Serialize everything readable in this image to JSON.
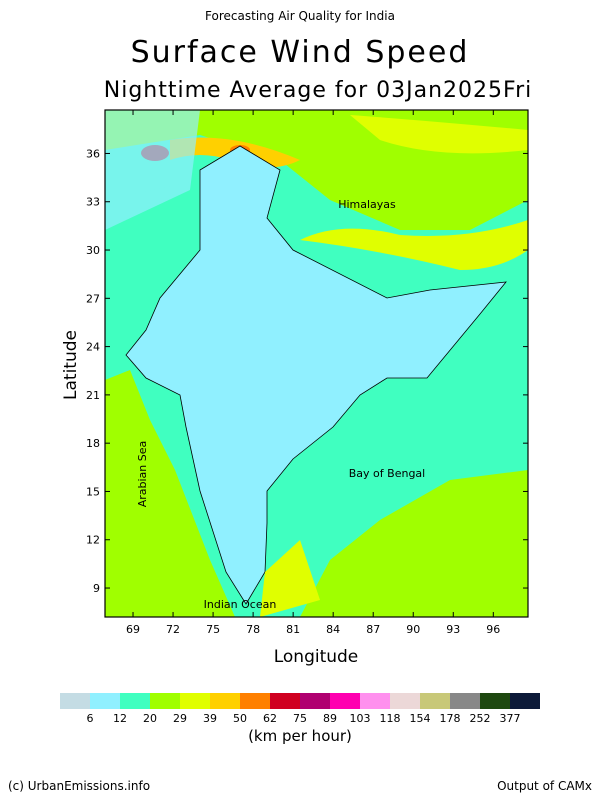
{
  "header": {
    "top": "Forecasting Air Quality for India",
    "title": "Surface Wind Speed",
    "subtitle": "Nighttime Average for 03Jan2025Fri"
  },
  "map": {
    "x_label": "Longitude",
    "y_label": "Latitude",
    "xlim": [
      66.9,
      98.6
    ],
    "ylim": [
      7.2,
      38.7
    ],
    "xticks": [
      69,
      72,
      75,
      78,
      81,
      84,
      87,
      90,
      93,
      96
    ],
    "yticks": [
      9,
      12,
      15,
      18,
      21,
      24,
      27,
      30,
      33,
      36
    ],
    "labels": [
      "Himalayas",
      "Arabian Sea",
      "Bay of Bengal",
      "Indian Ocean"
    ]
  },
  "legend": {
    "colors": [
      "#c4dce4",
      "#90f0ff",
      "#40ffc0",
      "#a0ff00",
      "#e0ff00",
      "#ffd000",
      "#ff8000",
      "#d00020",
      "#b00070",
      "#ff00b0",
      "#ff90ee",
      "#ecd8d8",
      "#c8c878",
      "#888888",
      "#1e4810",
      "#0c1a38"
    ],
    "bounds": [
      6,
      12,
      20,
      29,
      39,
      50,
      62,
      75,
      89,
      103,
      118,
      154,
      178,
      252,
      377
    ],
    "unit": "(km per hour)"
  },
  "footer": {
    "left": "(c) UrbanEmissions.info",
    "right": "Output of CAMx"
  }
}
